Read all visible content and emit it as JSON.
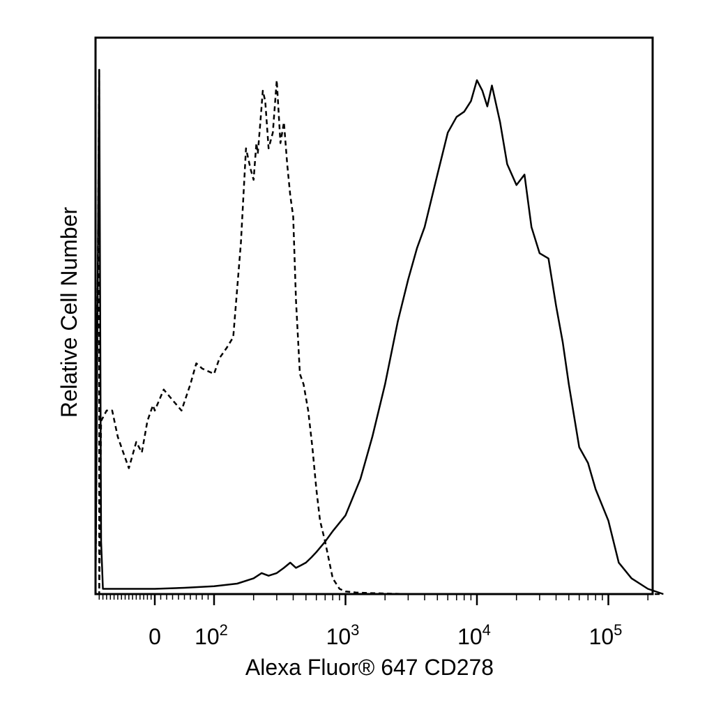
{
  "chart_data": {
    "type": "line",
    "title": "",
    "xlabel": "Alexa Fluor® 647 CD278",
    "ylabel": "Relative Cell Number",
    "x_scale": "biexponential (log above 100)",
    "x_ticks": [
      {
        "value": 0,
        "base": "0",
        "exp": ""
      },
      {
        "value": 100,
        "base": "10",
        "exp": "2"
      },
      {
        "value": 1000,
        "base": "10",
        "exp": "3"
      },
      {
        "value": 10000,
        "base": "10",
        "exp": "4"
      },
      {
        "value": 100000,
        "base": "10",
        "exp": "5"
      }
    ],
    "xlim": [
      -160,
      262000
    ],
    "ylim": [
      0,
      100
    ],
    "grid": false,
    "legend": "none",
    "series": [
      {
        "style": "dashed",
        "x": [
          -160,
          -150,
          -150,
          -145,
          -130,
          -115,
          -100,
          -85,
          -70,
          -50,
          -35,
          -20,
          -5,
          0,
          15,
          30,
          45,
          60,
          70,
          80,
          100,
          110,
          125,
          140,
          160,
          175,
          190,
          200,
          210,
          215,
          225,
          235,
          245,
          260,
          280,
          300,
          320,
          340,
          360,
          380,
          400,
          420,
          450,
          480,
          520,
          560,
          600,
          640,
          700,
          800,
          900,
          1000,
          1200,
          1500,
          2000,
          3000,
          5000,
          10000,
          30000,
          100000,
          262000
        ],
        "y": [
          0,
          100,
          0,
          33,
          35,
          35,
          30,
          27,
          24,
          29,
          27,
          33,
          36,
          35,
          39,
          37,
          35,
          40,
          44,
          43,
          42,
          45,
          47,
          49,
          67,
          85,
          81,
          79,
          86,
          84,
          90,
          96,
          94,
          85,
          88,
          98,
          86,
          90,
          82,
          76,
          72,
          56,
          42,
          40,
          35,
          28,
          20,
          14,
          10,
          3,
          1,
          0.5,
          0.3,
          0.2,
          0.1,
          0,
          0,
          0,
          0,
          0,
          0
        ]
      },
      {
        "style": "solid",
        "x": [
          -160,
          -150,
          -145,
          -140,
          -130,
          -100,
          -50,
          0,
          50,
          100,
          150,
          200,
          230,
          260,
          300,
          340,
          380,
          420,
          460,
          500,
          550,
          600,
          700,
          800,
          1000,
          1300,
          1600,
          2000,
          2500,
          3000,
          3500,
          4000,
          5000,
          6000,
          7000,
          8000,
          9000,
          10000,
          11000,
          12000,
          13000,
          15000,
          17000,
          20000,
          23000,
          26000,
          30000,
          35000,
          40000,
          45000,
          50000,
          60000,
          70000,
          80000,
          100000,
          120000,
          150000,
          200000,
          262000
        ],
        "y": [
          0,
          100,
          10,
          1,
          1,
          1,
          1,
          1,
          1.2,
          1.5,
          2,
          3,
          4,
          3.5,
          4,
          5,
          6,
          5,
          5.5,
          6,
          7,
          8,
          10,
          12,
          15,
          22,
          30,
          40,
          52,
          60,
          66,
          70,
          80,
          88,
          91,
          92,
          94,
          98,
          96,
          93,
          97,
          90,
          82,
          78,
          80,
          70,
          65,
          64,
          55,
          48,
          40,
          28,
          25,
          20,
          14,
          6,
          3,
          1,
          0
        ]
      }
    ]
  }
}
